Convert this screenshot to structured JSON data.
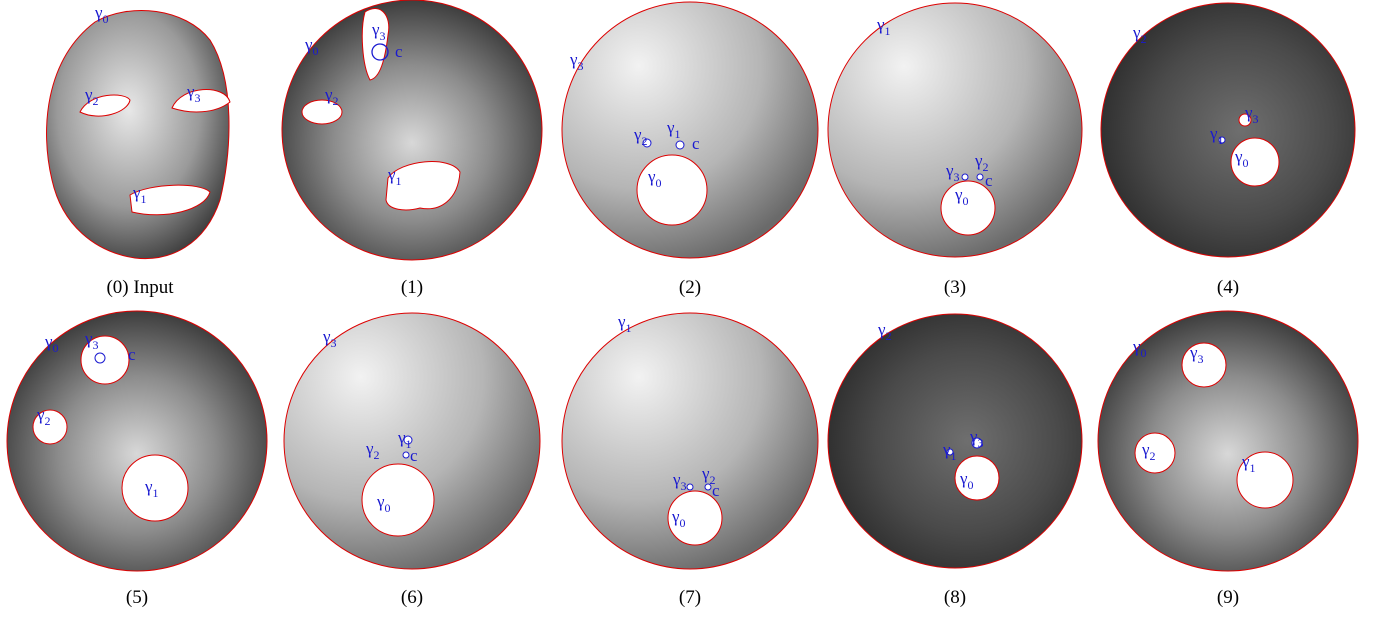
{
  "panels": [
    {
      "caption": "(0) Input",
      "labels": [
        {
          "text": "γ",
          "sub": "0"
        },
        {
          "text": "γ",
          "sub": "2"
        },
        {
          "text": "γ",
          "sub": "3"
        },
        {
          "text": "γ",
          "sub": "1"
        }
      ]
    },
    {
      "caption": "(1)",
      "labels": [
        {
          "text": "γ",
          "sub": "0"
        },
        {
          "text": "γ",
          "sub": "3"
        },
        {
          "text": "c"
        },
        {
          "text": "γ",
          "sub": "2"
        },
        {
          "text": "γ",
          "sub": "1"
        }
      ]
    },
    {
      "caption": "(2)",
      "labels": [
        {
          "text": "γ",
          "sub": "3"
        },
        {
          "text": "γ",
          "sub": "2"
        },
        {
          "text": "γ",
          "sub": "1"
        },
        {
          "text": "c"
        },
        {
          "text": "γ",
          "sub": "0"
        }
      ]
    },
    {
      "caption": "(3)",
      "labels": [
        {
          "text": "γ",
          "sub": "1"
        },
        {
          "text": "γ",
          "sub": "3"
        },
        {
          "text": "γ",
          "sub": "2"
        },
        {
          "text": "c"
        },
        {
          "text": "γ",
          "sub": "0"
        }
      ]
    },
    {
      "caption": "(4)",
      "labels": [
        {
          "text": "γ",
          "sub": "2"
        },
        {
          "text": "γ",
          "sub": "3"
        },
        {
          "text": "γ",
          "sub": "1"
        },
        {
          "text": "γ",
          "sub": "0"
        }
      ]
    },
    {
      "caption": "(5)",
      "labels": [
        {
          "text": "γ",
          "sub": "0"
        },
        {
          "text": "γ",
          "sub": "3"
        },
        {
          "text": "c"
        },
        {
          "text": "γ",
          "sub": "2"
        },
        {
          "text": "γ",
          "sub": "1"
        }
      ]
    },
    {
      "caption": "(6)",
      "labels": [
        {
          "text": "γ",
          "sub": "3"
        },
        {
          "text": "γ",
          "sub": "2"
        },
        {
          "text": "γ",
          "sub": "1"
        },
        {
          "text": "c"
        },
        {
          "text": "γ",
          "sub": "0"
        }
      ]
    },
    {
      "caption": "(7)",
      "labels": [
        {
          "text": "γ",
          "sub": "1"
        },
        {
          "text": "γ",
          "sub": "3"
        },
        {
          "text": "γ",
          "sub": "2"
        },
        {
          "text": "c"
        },
        {
          "text": "γ",
          "sub": "0"
        }
      ]
    },
    {
      "caption": "(8)",
      "labels": [
        {
          "text": "γ",
          "sub": "2"
        },
        {
          "text": "γ",
          "sub": "3"
        },
        {
          "text": "γ",
          "sub": "1"
        },
        {
          "text": "γ",
          "sub": "0"
        }
      ]
    },
    {
      "caption": "(9)",
      "labels": [
        {
          "text": "γ",
          "sub": "0"
        },
        {
          "text": "γ",
          "sub": "3"
        },
        {
          "text": "γ",
          "sub": "2"
        },
        {
          "text": "γ",
          "sub": "1"
        }
      ]
    }
  ]
}
